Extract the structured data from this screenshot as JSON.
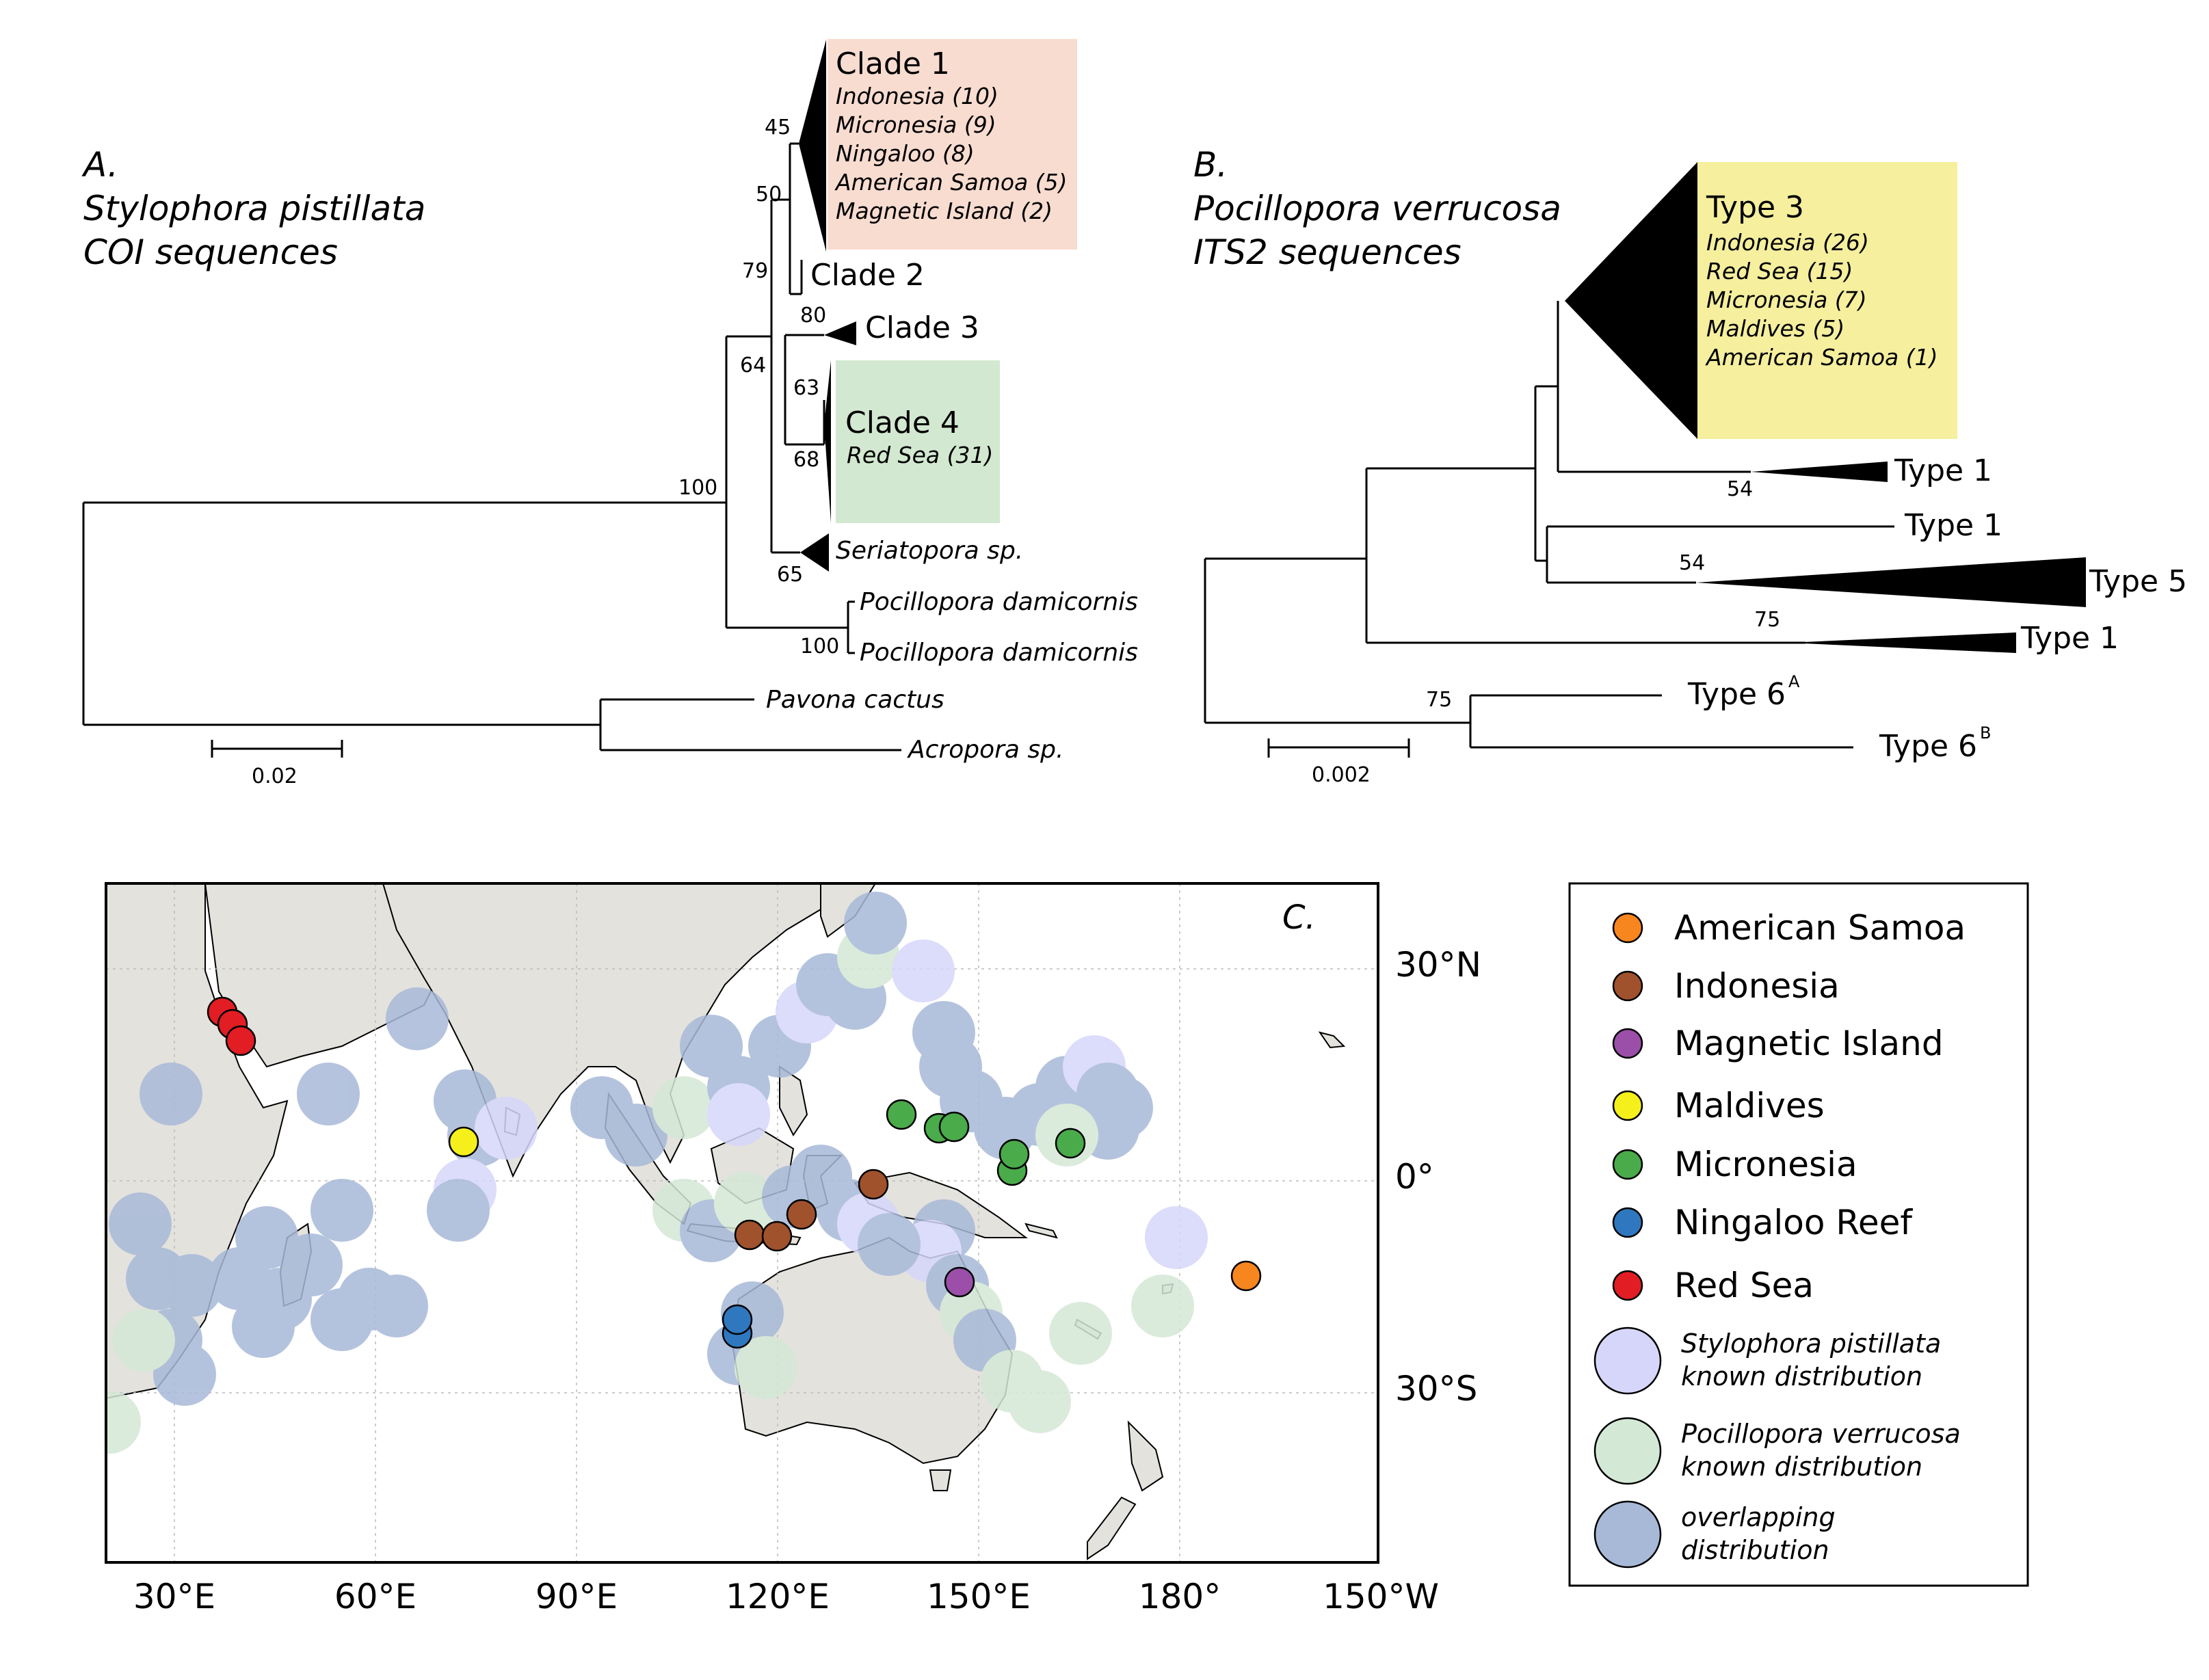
{
  "panelA": {
    "letter": "A.",
    "species": "Stylophora pistillata",
    "marker": "COI sequences",
    "clade1": {
      "name": "Clade 1",
      "items": [
        "Indonesia (10)",
        "Micronesia (9)",
        "Ningaloo (8)",
        "American Samoa (5)",
        "Magnetic Island (2)"
      ]
    },
    "clade2": "Clade 2",
    "clade3": "Clade 3",
    "clade4": {
      "name": "Clade 4",
      "items": [
        "Red Sea (31)"
      ]
    },
    "seriatopora": "Seriatopora sp.",
    "pocillopora1": "Pocillopora damicornis",
    "pocillopora2": "Pocillopora damicornis",
    "pavona": "Pavona cactus",
    "acropora": "Acropora sp.",
    "support": {
      "n45": "45",
      "n50": "50",
      "n79": "79",
      "n80": "80",
      "n64": "64",
      "n63": "63",
      "n68": "68",
      "n100a": "100",
      "n65": "65",
      "n100b": "100"
    },
    "scale": "0.02",
    "colors": {
      "clade1_bg": "#f8dcd0",
      "clade4_bg": "#d3e8d0"
    }
  },
  "panelB": {
    "letter": "B.",
    "species": "Pocillopora verrucosa",
    "marker": "ITS2 sequences",
    "type3": {
      "name": "Type 3",
      "items": [
        "Indonesia (26)",
        "Red Sea (15)",
        "Micronesia (7)",
        "Maldives (5)",
        "American Samoa (1)"
      ]
    },
    "type1a": "Type 1",
    "type1b": "Type 1",
    "type5": "Type 5",
    "type1c": "Type 1",
    "type6a": "Type 6",
    "type6a_sup": "A",
    "type6b": "Type 6",
    "type6b_sup": "B",
    "support": {
      "n54a": "54",
      "n54b": "54",
      "n75a": "75",
      "n75b": "75"
    },
    "scale": "0.002",
    "colors": {
      "type3_bg": "#f5ef9e"
    }
  },
  "panelC": {
    "letter": "C.",
    "lat_labels": [
      "30°N",
      "0°",
      "30°S"
    ],
    "lon_labels": [
      "30°E",
      "60°E",
      "90°E",
      "120°E",
      "150°E",
      "180°",
      "150°W"
    ],
    "legend": [
      {
        "label": "American Samoa",
        "color": "#f7861f"
      },
      {
        "label": "Indonesia",
        "color": "#a0522d"
      },
      {
        "label": "Magnetic Island",
        "color": "#9b4fa8"
      },
      {
        "label": "Maldives",
        "color": "#f5f01c"
      },
      {
        "label": "Micronesia",
        "color": "#4aab4a"
      },
      {
        "label": "Ningaloo Reef",
        "color": "#2f78bf"
      },
      {
        "label": "Red Sea",
        "color": "#e21d24"
      }
    ],
    "dist_legend": [
      {
        "line1": "Stylophora pistillata",
        "line2": "known distribution",
        "color": "#d6d6fb"
      },
      {
        "line1": "Pocillopora verrucosa",
        "line2": "known distribution",
        "color": "#d4e8d6"
      },
      {
        "line1": "overlapping",
        "line2": "distribution",
        "color": "#a8b9d8"
      }
    ],
    "colors": {
      "land": "#e3e2dd",
      "ocean": "#ffffff",
      "grid": "#bbbbbb"
    }
  }
}
